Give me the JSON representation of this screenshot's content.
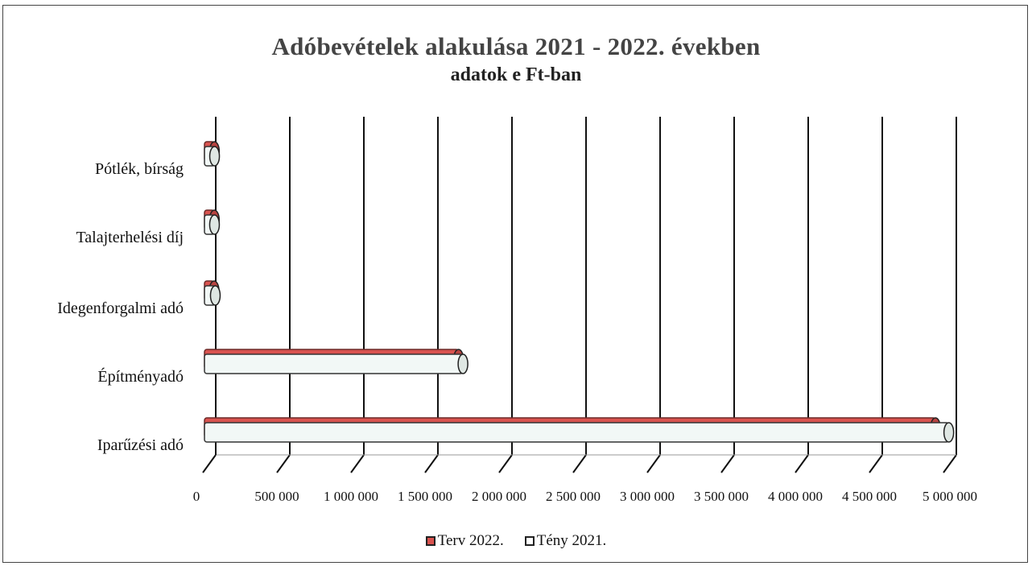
{
  "chart_data": {
    "type": "bar",
    "orientation": "horizontal",
    "title": "Adóbevételek alakulása 2021 - 2022. években",
    "subtitle": "adatok e Ft-ban",
    "categories": [
      "Pótlék, bírság",
      "Talajterhelési díj",
      "Idegenforgalmi adó",
      "Építményadó",
      "Iparűzési adó"
    ],
    "series": [
      {
        "name": "Terv 2022.",
        "color": "#d9534f",
        "values": [
          2000,
          1500,
          0,
          1650000,
          4870000
        ]
      },
      {
        "name": "Tény 2021.",
        "color": "#f2f8f6",
        "values": [
          3000,
          2500,
          8000,
          1680000,
          4960000
        ]
      }
    ],
    "x_ticks": [
      "0",
      "500 000",
      "1 000 000",
      "1 500 000",
      "2 000 000",
      "2 500 000",
      "3 000 000",
      "3 500 000",
      "4 000 000",
      "4 500 000",
      "5 000 000"
    ],
    "xlim": [
      0,
      5000000
    ],
    "grid": "vertical",
    "legend_position": "bottom"
  },
  "legend": {
    "terv_label": "Terv 2022.",
    "teny_label": "Tény 2021."
  }
}
